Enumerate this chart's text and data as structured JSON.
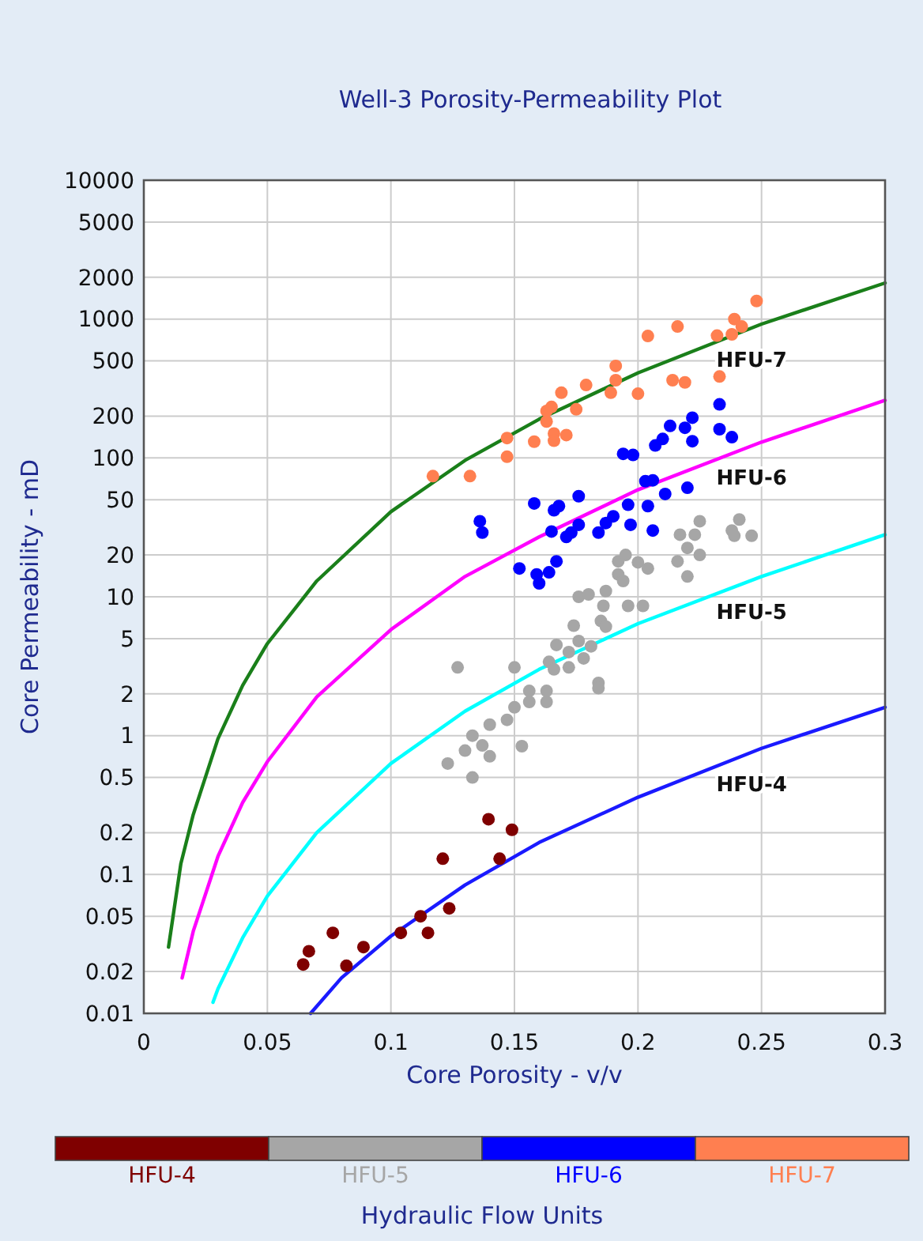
{
  "chart_data": {
    "type": "scatter",
    "title": "Well-3 Porosity-Permeability Plot",
    "xlabel": "Core Porosity - v/v",
    "ylabel": "Core Permeability - mD",
    "legend_title": "Hydraulic Flow Units",
    "legend": "bottom",
    "grid": true,
    "log": "y",
    "marker": "circle",
    "xlim": [
      0,
      0.3
    ],
    "xticks": [
      0,
      0.05,
      0.1,
      0.15,
      0.2,
      0.25,
      0.3
    ],
    "ylim": [
      0.01,
      10000
    ],
    "yticks": [
      0.01,
      0.02,
      0.05,
      0.1,
      0.2,
      0.5,
      1,
      2,
      5,
      10,
      20,
      50,
      100,
      200,
      500,
      1000,
      2000,
      5000,
      10000
    ],
    "series": [
      {
        "type": "line",
        "marker": "none",
        "color": "#1a7f1a",
        "x": [
          0.01,
          0.015,
          0.02,
          0.03,
          0.04,
          0.05,
          0.07,
          0.1,
          0.13,
          0.16,
          0.2,
          0.25,
          0.3
        ],
        "values": [
          0.03,
          0.12,
          0.27,
          0.95,
          2.3,
          4.6,
          13,
          41,
          96,
          190,
          410,
          920,
          1820
        ]
      },
      {
        "type": "line",
        "marker": "none",
        "color": "#ff00ff",
        "x": [
          0.0155,
          0.02,
          0.03,
          0.04,
          0.05,
          0.07,
          0.1,
          0.13,
          0.16,
          0.2,
          0.25,
          0.3
        ],
        "values": [
          0.018,
          0.039,
          0.135,
          0.33,
          0.65,
          1.9,
          5.8,
          14,
          27,
          59,
          130,
          260
        ]
      },
      {
        "type": "line",
        "marker": "none",
        "color": "#00ffff",
        "x": [
          0.028,
          0.03,
          0.04,
          0.05,
          0.07,
          0.1,
          0.13,
          0.16,
          0.2,
          0.25,
          0.3
        ],
        "values": [
          0.012,
          0.015,
          0.035,
          0.07,
          0.2,
          0.63,
          1.5,
          3,
          6.4,
          14,
          28
        ]
      },
      {
        "type": "line",
        "marker": "none",
        "color": "#1a1aff",
        "x": [
          0.0675,
          0.08,
          0.1,
          0.13,
          0.16,
          0.2,
          0.25,
          0.3
        ],
        "values": [
          0.01,
          0.018,
          0.036,
          0.084,
          0.17,
          0.36,
          0.81,
          1.6
        ]
      },
      {
        "name": "HFU-4",
        "color": "#7f0000",
        "x": [
          0.0645,
          0.0668,
          0.0765,
          0.082,
          0.0889,
          0.104,
          0.112,
          0.115,
          0.121,
          0.1236,
          0.144,
          0.1395,
          0.149
        ],
        "values": [
          0.0225,
          0.028,
          0.038,
          0.022,
          0.03,
          0.038,
          0.05,
          0.038,
          0.13,
          0.057,
          0.13,
          0.25,
          0.21
        ]
      },
      {
        "name": "HFU-5",
        "color": "#a6a6a6",
        "x": [
          0.127,
          0.15,
          0.123,
          0.133,
          0.13,
          0.137,
          0.14,
          0.133,
          0.14,
          0.147,
          0.153,
          0.15,
          0.156,
          0.156,
          0.163,
          0.163,
          0.164,
          0.166,
          0.167,
          0.172,
          0.172,
          0.176,
          0.178,
          0.181,
          0.184,
          0.184,
          0.174,
          0.185,
          0.187,
          0.176,
          0.18,
          0.187,
          0.186,
          0.196,
          0.202,
          0.192,
          0.195,
          0.192,
          0.194,
          0.2,
          0.204,
          0.217,
          0.223,
          0.225,
          0.22,
          0.225,
          0.216,
          0.22,
          0.241,
          0.238,
          0.239,
          0.246
        ],
        "values": [
          3.1,
          3.1,
          0.63,
          0.5,
          0.78,
          0.85,
          0.71,
          1,
          1.2,
          1.3,
          0.84,
          1.6,
          2.1,
          1.75,
          2.1,
          1.75,
          3.4,
          3,
          4.5,
          3.1,
          4,
          4.8,
          3.6,
          4.4,
          2.4,
          2.2,
          6.2,
          6.7,
          6.1,
          10,
          10.4,
          11,
          8.6,
          8.6,
          8.6,
          18,
          20,
          14.5,
          13,
          17.7,
          16,
          28,
          28,
          35,
          22.5,
          20,
          18,
          14,
          36,
          30,
          27.5,
          27.5
        ]
      },
      {
        "name": "HFU-6",
        "color": "#0000ff",
        "x": [
          0.136,
          0.137,
          0.152,
          0.159,
          0.16,
          0.164,
          0.167,
          0.158,
          0.166,
          0.168,
          0.176,
          0.165,
          0.171,
          0.173,
          0.176,
          0.184,
          0.187,
          0.19,
          0.197,
          0.196,
          0.204,
          0.206,
          0.203,
          0.206,
          0.211,
          0.22,
          0.194,
          0.198,
          0.207,
          0.21,
          0.213,
          0.219,
          0.222,
          0.222,
          0.233,
          0.233,
          0.238
        ],
        "values": [
          35,
          29,
          16,
          14.5,
          12.5,
          15,
          18,
          47,
          42,
          45,
          53,
          29.5,
          27,
          29,
          33,
          29,
          34,
          38,
          33,
          46,
          45,
          30,
          68,
          69,
          55,
          61,
          107,
          105,
          123,
          137,
          170,
          165,
          195,
          132,
          161,
          243,
          141
        ]
      },
      {
        "name": "HFU-7",
        "color": "#ff7f50",
        "x": [
          0.117,
          0.132,
          0.147,
          0.147,
          0.158,
          0.166,
          0.166,
          0.171,
          0.163,
          0.163,
          0.165,
          0.169,
          0.175,
          0.179,
          0.189,
          0.2,
          0.191,
          0.191,
          0.204,
          0.214,
          0.219,
          0.216,
          0.232,
          0.233,
          0.238,
          0.239,
          0.242,
          0.248
        ],
        "values": [
          74,
          74,
          102,
          139,
          131,
          150,
          133,
          146,
          183,
          218,
          233,
          295,
          224,
          335,
          295,
          290,
          460,
          363,
          755,
          363,
          350,
          884,
          760,
          386,
          776,
          1000,
          884,
          1350
        ]
      }
    ],
    "annotations": [
      "HFU-7",
      "HFU-6",
      "HFU-5",
      "HFU-4"
    ]
  }
}
